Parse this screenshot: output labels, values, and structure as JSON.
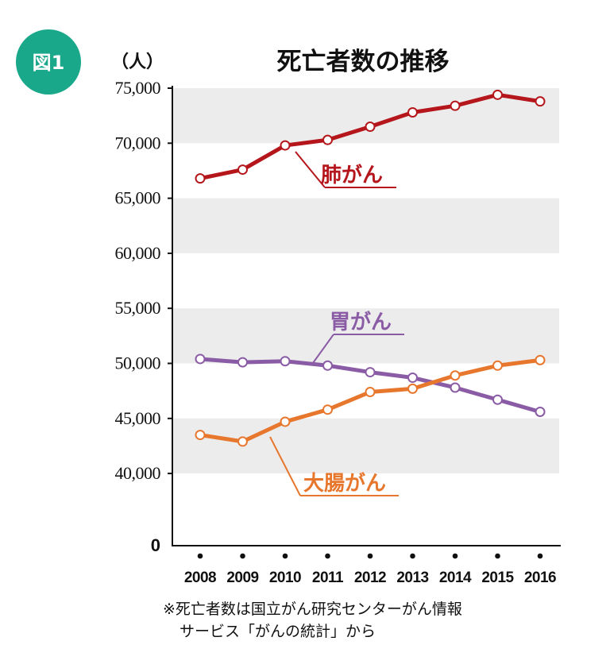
{
  "figure_badge": "図1",
  "chart_data": {
    "type": "line",
    "title": "死亡者数の推移",
    "ylabel": "（人）",
    "xlabel": "",
    "x": [
      "2008",
      "2009",
      "2010",
      "2011",
      "2012",
      "2013",
      "2014",
      "2015",
      "2016"
    ],
    "ylim": [
      35000,
      75000
    ],
    "yticks": [
      "75,000",
      "70,000",
      "65,000",
      "60,000",
      "55,000",
      "50,000",
      "45,000",
      "40,000",
      "0"
    ],
    "axis_break": "40,000 → 0",
    "grid": "alternating horizontal bands",
    "series": [
      {
        "name": "肺がん",
        "color": "#b5161b",
        "values": [
          66800,
          67600,
          69800,
          70300,
          71500,
          72800,
          73400,
          74400,
          73800
        ]
      },
      {
        "name": "胃がん",
        "color": "#8b5ca6",
        "values": [
          50400,
          50100,
          50200,
          49800,
          49200,
          48700,
          47800,
          46700,
          45600
        ]
      },
      {
        "name": "大腸がん",
        "color": "#e8772e",
        "values": [
          43500,
          42900,
          44700,
          45800,
          47400,
          47700,
          48900,
          49800,
          50300
        ]
      }
    ]
  },
  "footnote": {
    "line1": "※死亡者数は国立がん研究センターがん情報",
    "line2": "サービス「がんの統計」から"
  }
}
